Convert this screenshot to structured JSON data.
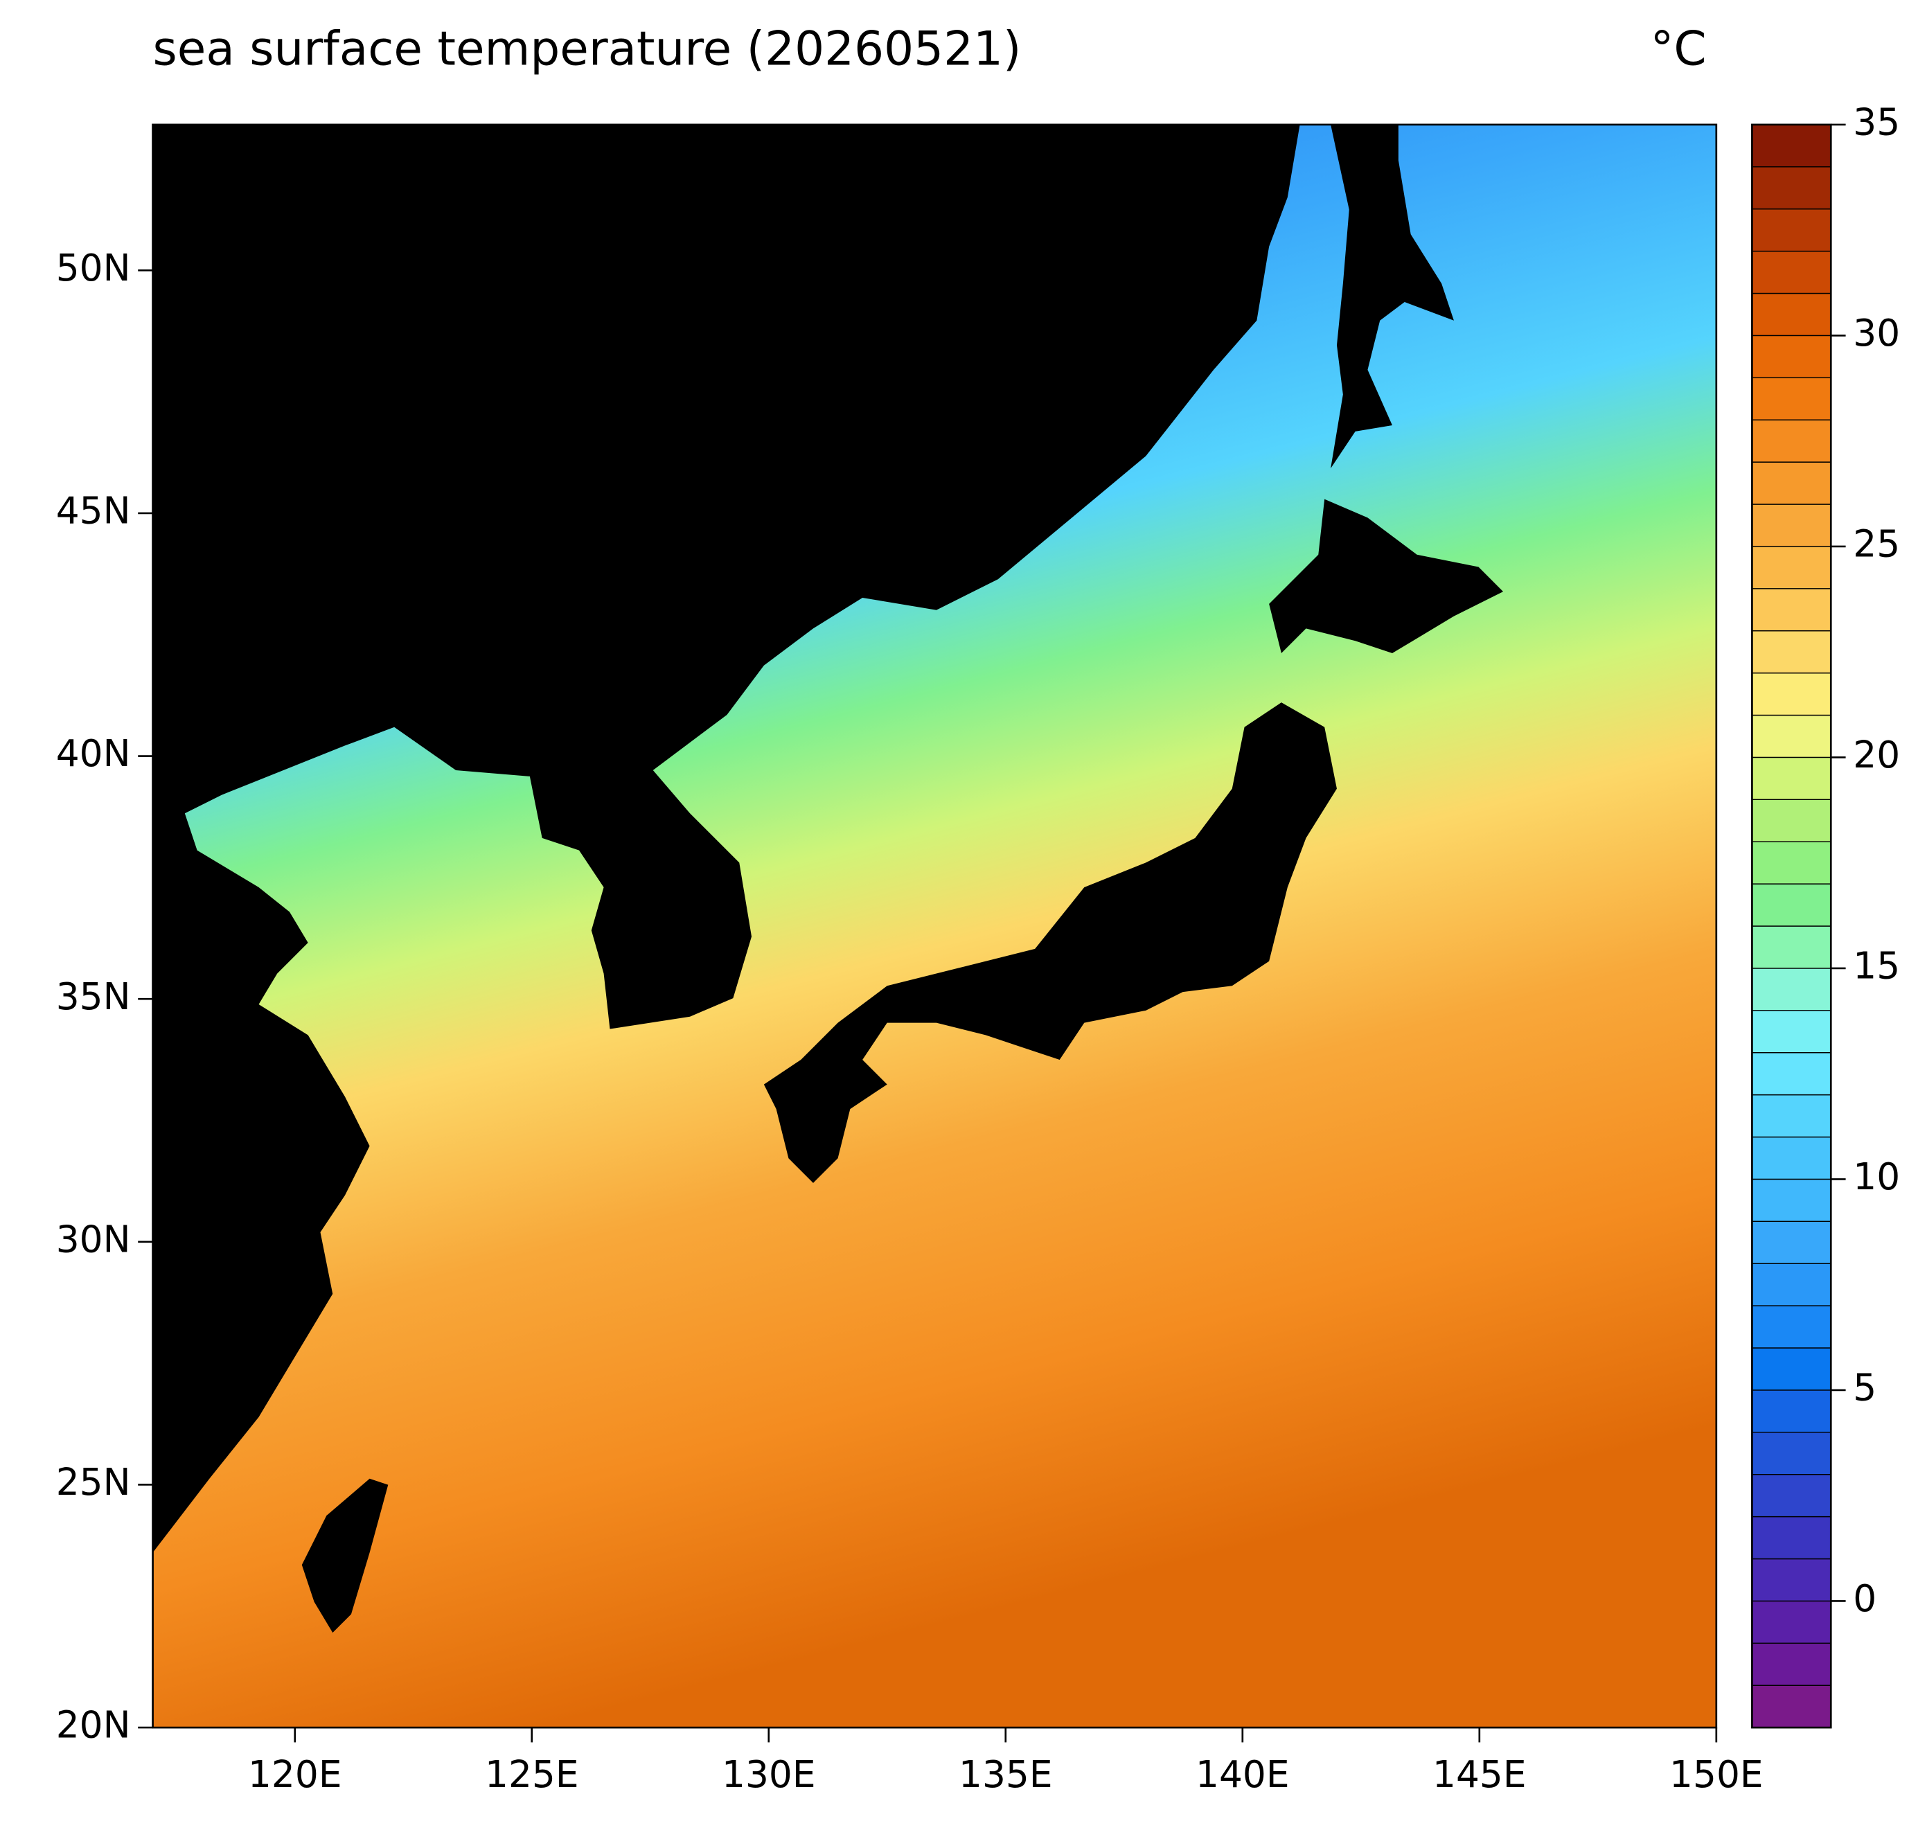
{
  "chart_data": {
    "type": "map",
    "title": "sea surface temperature (20260521)",
    "colorbar_label": "°C",
    "xlim": [
      117,
      150
    ],
    "ylim": [
      20,
      53
    ],
    "xticks": [
      {
        "value": 120,
        "label": "120E"
      },
      {
        "value": 125,
        "label": "125E"
      },
      {
        "value": 130,
        "label": "130E"
      },
      {
        "value": 135,
        "label": "135E"
      },
      {
        "value": 140,
        "label": "140E"
      },
      {
        "value": 145,
        "label": "145E"
      },
      {
        "value": 150,
        "label": "150E"
      }
    ],
    "yticks": [
      {
        "value": 20,
        "label": "20N"
      },
      {
        "value": 25,
        "label": "25N"
      },
      {
        "value": 30,
        "label": "30N"
      },
      {
        "value": 35,
        "label": "35N"
      },
      {
        "value": 40,
        "label": "40N"
      },
      {
        "value": 45,
        "label": "45N"
      },
      {
        "value": 50,
        "label": "50N"
      }
    ],
    "colorbar": {
      "lim": [
        -3,
        35
      ],
      "ticks": [
        0,
        5,
        10,
        15,
        20,
        25,
        30,
        35
      ],
      "colors": [
        "#7a1a8a",
        "#6a1a9a",
        "#5a20a8",
        "#4a2ab5",
        "#3a35c0",
        "#2e45cc",
        "#2255d8",
        "#1565e5",
        "#0a78f0",
        "#1a88f5",
        "#2a98f8",
        "#38a8fa",
        "#40b8fc",
        "#48c4fc",
        "#55d4fd",
        "#66e4fe",
        "#78f0f5",
        "#88f5d8",
        "#88f5b0",
        "#80f090",
        "#90f080",
        "#b0f078",
        "#d0f478",
        "#eef580",
        "#fcec78",
        "#fcd868",
        "#fcc858",
        "#fab848",
        "#f8a83a",
        "#f69a2c",
        "#f48c20",
        "#f07a10",
        "#e86a08",
        "#dc5a04",
        "#cc4a04",
        "#b83a04",
        "#a02a04",
        "#881a04"
      ]
    }
  }
}
